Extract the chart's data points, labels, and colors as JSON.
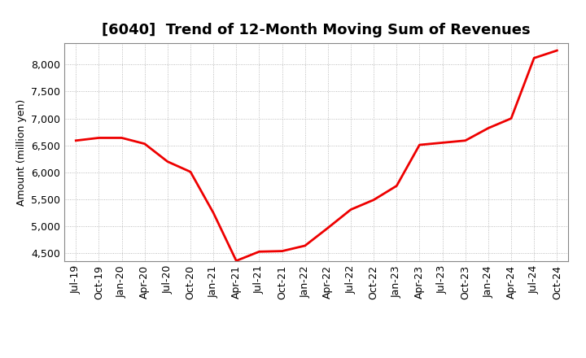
{
  "title": "[6040]  Trend of 12-Month Moving Sum of Revenues",
  "ylabel": "Amount (million yen)",
  "line_color": "#EE0000",
  "background_color": "#FFFFFF",
  "grid_color": "#AAAAAA",
  "ylim": [
    4350,
    8400
  ],
  "yticks": [
    4500,
    5000,
    5500,
    6000,
    6500,
    7000,
    7500,
    8000
  ],
  "x_labels": [
    "Jul-19",
    "Oct-19",
    "Jan-20",
    "Apr-20",
    "Jul-20",
    "Oct-20",
    "Jan-21",
    "Apr-21",
    "Jul-21",
    "Oct-21",
    "Jan-22",
    "Apr-22",
    "Jul-22",
    "Oct-22",
    "Jan-23",
    "Apr-23",
    "Jul-23",
    "Oct-23",
    "Jan-24",
    "Apr-24",
    "Jul-24",
    "Oct-24"
  ],
  "y_values": [
    6590,
    6640,
    6640,
    6530,
    6200,
    6010,
    5250,
    4360,
    4530,
    4540,
    4640,
    4970,
    5310,
    5490,
    5750,
    6510,
    6550,
    6590,
    6820,
    7000,
    8120,
    8260
  ],
  "title_fontsize": 13,
  "tick_fontsize": 9,
  "ylabel_fontsize": 9,
  "linewidth": 2.0
}
